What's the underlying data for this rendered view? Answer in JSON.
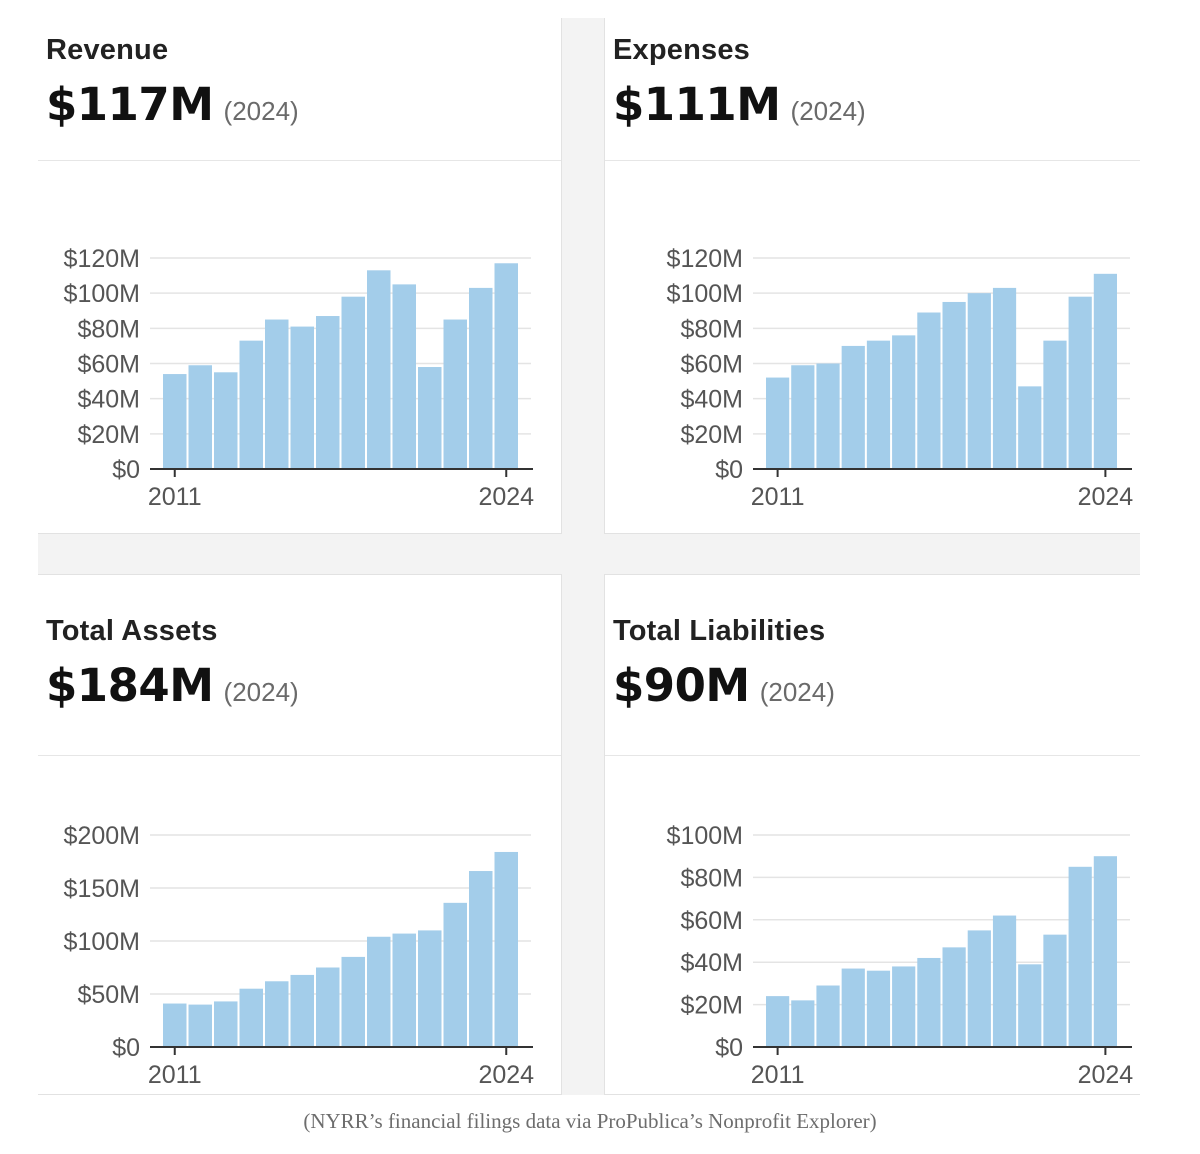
{
  "cards": [
    {
      "title": "Revenue",
      "value": "$117M",
      "year": "(2024)"
    },
    {
      "title": "Expenses",
      "value": "$111M",
      "year": "(2024)"
    },
    {
      "title": "Total Assets",
      "value": "$184M",
      "year": "(2024)"
    },
    {
      "title": "Total Liabilities",
      "value": "$90M",
      "year": "(2024)"
    }
  ],
  "caption": "(NYRR’s financial filings data via ProPublica’s Nonprofit Explorer)",
  "colors": {
    "bar": "#a3cdea",
    "grid": "#e4e4e4",
    "axis": "#333333",
    "tick_text": "#555555"
  },
  "chart_data": [
    {
      "type": "bar",
      "title": "Revenue",
      "categories": [
        "2011",
        "2012",
        "2013",
        "2014",
        "2015",
        "2016",
        "2017",
        "2018",
        "2019",
        "2020",
        "2021",
        "2022",
        "2023",
        "2024"
      ],
      "x_tick_labels": [
        "2011",
        "2024"
      ],
      "values": [
        54,
        59,
        55,
        73,
        85,
        81,
        87,
        98,
        113,
        105,
        58,
        85,
        103,
        117
      ],
      "ylim": [
        0,
        120
      ],
      "y_ticks": [
        0,
        20,
        40,
        60,
        80,
        100,
        120
      ],
      "y_tick_labels": [
        "$0",
        "$20M",
        "$40M",
        "$60M",
        "$80M",
        "$100M",
        "$120M"
      ],
      "xlabel": "",
      "ylabel": ""
    },
    {
      "type": "bar",
      "title": "Expenses",
      "categories": [
        "2011",
        "2012",
        "2013",
        "2014",
        "2015",
        "2016",
        "2017",
        "2018",
        "2019",
        "2020",
        "2021",
        "2022",
        "2023",
        "2024"
      ],
      "x_tick_labels": [
        "2011",
        "2024"
      ],
      "values": [
        52,
        59,
        60,
        70,
        73,
        76,
        89,
        95,
        100,
        103,
        47,
        73,
        98,
        111
      ],
      "ylim": [
        0,
        120
      ],
      "y_ticks": [
        0,
        20,
        40,
        60,
        80,
        100,
        120
      ],
      "y_tick_labels": [
        "$0",
        "$20M",
        "$40M",
        "$60M",
        "$80M",
        "$100M",
        "$120M"
      ],
      "xlabel": "",
      "ylabel": ""
    },
    {
      "type": "bar",
      "title": "Total Assets",
      "categories": [
        "2011",
        "2012",
        "2013",
        "2014",
        "2015",
        "2016",
        "2017",
        "2018",
        "2019",
        "2020",
        "2021",
        "2022",
        "2023",
        "2024"
      ],
      "x_tick_labels": [
        "2011",
        "2024"
      ],
      "values": [
        41,
        40,
        43,
        55,
        62,
        68,
        75,
        85,
        104,
        107,
        110,
        136,
        166,
        184
      ],
      "ylim": [
        0,
        200
      ],
      "y_ticks": [
        0,
        50,
        100,
        150,
        200
      ],
      "y_tick_labels": [
        "$0",
        "$50M",
        "$100M",
        "$150M",
        "$200M"
      ],
      "xlabel": "",
      "ylabel": ""
    },
    {
      "type": "bar",
      "title": "Total Liabilities",
      "categories": [
        "2011",
        "2012",
        "2013",
        "2014",
        "2015",
        "2016",
        "2017",
        "2018",
        "2019",
        "2020",
        "2021",
        "2022",
        "2023",
        "2024"
      ],
      "x_tick_labels": [
        "2011",
        "2024"
      ],
      "values": [
        24,
        22,
        29,
        37,
        36,
        38,
        42,
        47,
        55,
        62,
        39,
        53,
        85,
        90
      ],
      "ylim": [
        0,
        100
      ],
      "y_ticks": [
        0,
        20,
        40,
        60,
        80,
        100
      ],
      "y_tick_labels": [
        "$0",
        "$20M",
        "$40M",
        "$60M",
        "$80M",
        "$100M"
      ],
      "xlabel": "",
      "ylabel": ""
    }
  ]
}
